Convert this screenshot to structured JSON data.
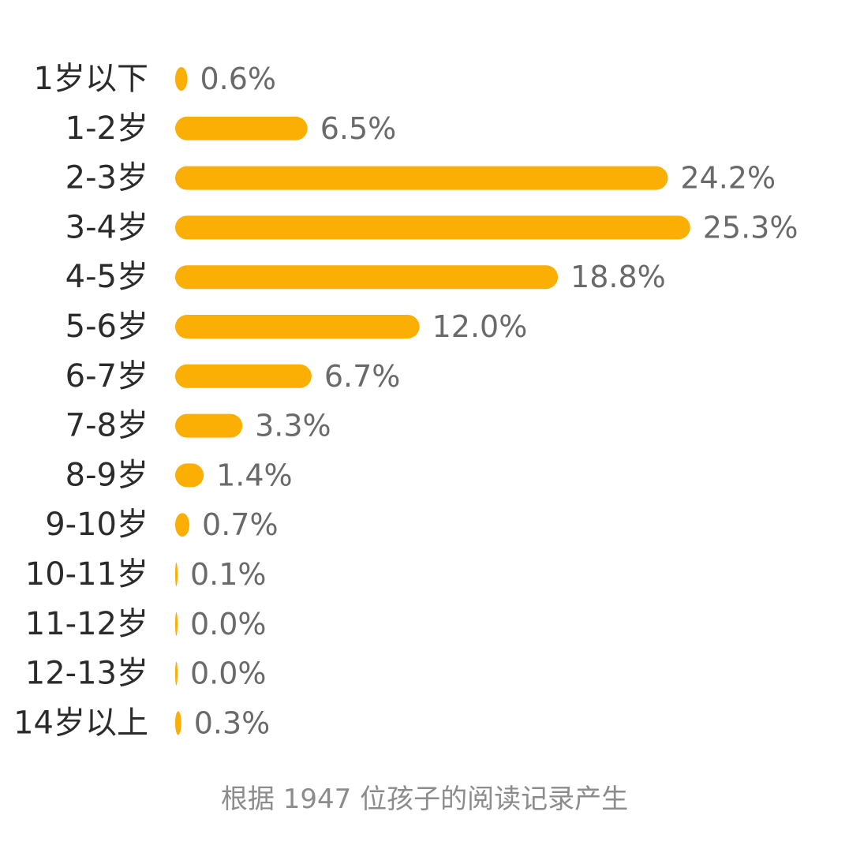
{
  "chart_data": {
    "type": "bar",
    "orientation": "horizontal",
    "categories": [
      "1岁以下",
      "1-2岁",
      "2-3岁",
      "3-4岁",
      "4-5岁",
      "5-6岁",
      "6-7岁",
      "7-8岁",
      "8-9岁",
      "9-10岁",
      "10-11岁",
      "11-12岁",
      "12-13岁",
      "14岁以上"
    ],
    "values": [
      0.6,
      6.5,
      24.2,
      25.3,
      18.8,
      12.0,
      6.7,
      3.3,
      1.4,
      0.7,
      0.1,
      0.0,
      0.0,
      0.3
    ],
    "value_labels": [
      "0.6%",
      "6.5%",
      "24.2%",
      "25.3%",
      "18.8%",
      "12.0%",
      "6.7%",
      "3.3%",
      "1.4%",
      "0.7%",
      "0.1%",
      "0.0%",
      "0.0%",
      "0.3%"
    ],
    "title": "",
    "xlabel": "",
    "ylabel": "",
    "bar_color": "#FBAF05",
    "grid": false,
    "legend": "none"
  },
  "footnote": "根据 1947 位孩子的阅读记录产生"
}
